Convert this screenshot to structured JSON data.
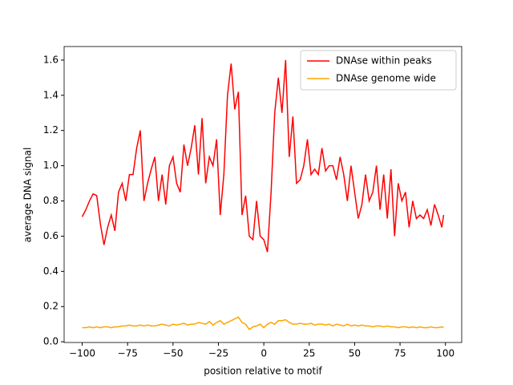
{
  "chart_data": {
    "type": "line",
    "xlabel": "position relative to motif",
    "ylabel": "average DNA signal",
    "x": [
      -100,
      -98,
      -96,
      -94,
      -92,
      -90,
      -88,
      -86,
      -84,
      -82,
      -80,
      -78,
      -76,
      -74,
      -72,
      -70,
      -68,
      -66,
      -64,
      -62,
      -60,
      -58,
      -56,
      -54,
      -52,
      -50,
      -48,
      -46,
      -44,
      -42,
      -40,
      -38,
      -36,
      -34,
      -32,
      -30,
      -28,
      -26,
      -24,
      -22,
      -20,
      -18,
      -16,
      -14,
      -12,
      -10,
      -8,
      -6,
      -4,
      -2,
      0,
      2,
      4,
      6,
      8,
      10,
      12,
      14,
      16,
      18,
      20,
      22,
      24,
      26,
      28,
      30,
      32,
      34,
      36,
      38,
      40,
      42,
      44,
      46,
      48,
      50,
      52,
      54,
      56,
      58,
      60,
      62,
      64,
      66,
      68,
      70,
      72,
      74,
      76,
      78,
      80,
      82,
      84,
      86,
      88,
      90,
      92,
      94,
      96,
      98,
      99
    ],
    "series": [
      {
        "name": "DNAse within peaks",
        "color": "#ff0000",
        "values": [
          0.71,
          0.75,
          0.8,
          0.84,
          0.83,
          0.67,
          0.55,
          0.65,
          0.72,
          0.63,
          0.85,
          0.9,
          0.8,
          0.95,
          0.95,
          1.1,
          1.2,
          0.8,
          0.9,
          0.98,
          1.05,
          0.8,
          0.95,
          0.78,
          1.0,
          1.05,
          0.9,
          0.85,
          1.12,
          1.0,
          1.1,
          1.23,
          0.95,
          1.27,
          0.9,
          1.05,
          1.0,
          1.15,
          0.72,
          0.95,
          1.4,
          1.58,
          1.32,
          1.42,
          0.72,
          0.83,
          0.6,
          0.58,
          0.8,
          0.6,
          0.58,
          0.51,
          0.85,
          1.3,
          1.5,
          1.3,
          1.6,
          1.05,
          1.28,
          0.9,
          0.92,
          1.0,
          1.15,
          0.95,
          0.98,
          0.95,
          1.1,
          0.97,
          1.0,
          1.0,
          0.92,
          1.05,
          0.95,
          0.8,
          1.0,
          0.85,
          0.7,
          0.78,
          0.95,
          0.8,
          0.85,
          1.0,
          0.75,
          0.95,
          0.7,
          0.98,
          0.6,
          0.9,
          0.8,
          0.85,
          0.65,
          0.8,
          0.7,
          0.72,
          0.7,
          0.75,
          0.66,
          0.78,
          0.72,
          0.65,
          0.72
        ]
      },
      {
        "name": "DNAse genome wide",
        "color": "#ffa500",
        "values": [
          0.08,
          0.08,
          0.085,
          0.08,
          0.085,
          0.08,
          0.085,
          0.085,
          0.08,
          0.085,
          0.085,
          0.09,
          0.09,
          0.095,
          0.09,
          0.09,
          0.095,
          0.09,
          0.095,
          0.09,
          0.09,
          0.095,
          0.1,
          0.095,
          0.09,
          0.1,
          0.095,
          0.1,
          0.105,
          0.095,
          0.1,
          0.1,
          0.11,
          0.105,
          0.1,
          0.115,
          0.095,
          0.11,
          0.12,
          0.1,
          0.11,
          0.12,
          0.13,
          0.14,
          0.11,
          0.1,
          0.07,
          0.085,
          0.09,
          0.1,
          0.08,
          0.1,
          0.11,
          0.1,
          0.12,
          0.12,
          0.125,
          0.11,
          0.1,
          0.1,
          0.105,
          0.1,
          0.1,
          0.105,
          0.095,
          0.1,
          0.1,
          0.095,
          0.1,
          0.09,
          0.1,
          0.095,
          0.09,
          0.1,
          0.09,
          0.095,
          0.09,
          0.095,
          0.09,
          0.09,
          0.085,
          0.09,
          0.09,
          0.085,
          0.09,
          0.085,
          0.085,
          0.08,
          0.085,
          0.085,
          0.08,
          0.085,
          0.08,
          0.085,
          0.08,
          0.08,
          0.085,
          0.08,
          0.08,
          0.085,
          0.08
        ]
      }
    ],
    "xlim": [
      -109.95,
      108.95
    ],
    "ylim": [
      -0.004,
      1.677
    ],
    "xticks": [
      {
        "value": -100,
        "label": "−100"
      },
      {
        "value": -75,
        "label": "−75"
      },
      {
        "value": -50,
        "label": "−50"
      },
      {
        "value": -25,
        "label": "−25"
      },
      0,
      25,
      50,
      75,
      100
    ],
    "yticks": [
      {
        "value": 0,
        "label": "0.0"
      },
      {
        "value": 0.2,
        "label": "0.2"
      },
      {
        "value": 0.4,
        "label": "0.4"
      },
      {
        "value": 0.6,
        "label": "0.6"
      },
      {
        "value": 0.8,
        "label": "0.8"
      },
      {
        "value": 1.0,
        "label": "1.0"
      },
      {
        "value": 1.2,
        "label": "1.2"
      },
      {
        "value": 1.4,
        "label": "1.4"
      },
      {
        "value": 1.6,
        "label": "1.6"
      }
    ],
    "legend": "upper right"
  }
}
